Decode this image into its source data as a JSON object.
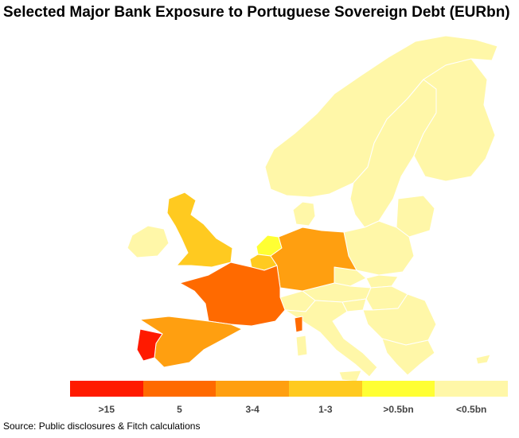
{
  "title": "Selected Major Bank Exposure to Portuguese Sovereign Debt (EURbn)",
  "source": "Source: Public disclosures & Fitch calculations",
  "legend": {
    "items": [
      {
        "label": ">15",
        "color": "#ff1a00"
      },
      {
        "label": "5",
        "color": "#ff6a00"
      },
      {
        "label": "3-4",
        "color": "#ff9f10"
      },
      {
        "label": "1-3",
        "color": "#ffca20"
      },
      {
        "label": ">0.5bn",
        "color": "#ffff33"
      },
      {
        "label": "<0.5bn",
        "color": "#fff7a8"
      }
    ]
  },
  "map_data": {
    "regions": [
      {
        "country": "Portugal",
        "category": ">15"
      },
      {
        "country": "France",
        "category": "5"
      },
      {
        "country": "Spain",
        "category": "3-4"
      },
      {
        "country": "Germany",
        "category": "3-4"
      },
      {
        "country": "United Kingdom",
        "category": "1-3"
      },
      {
        "country": "Belgium",
        "category": "1-3"
      },
      {
        "country": "Netherlands",
        "category": ">0.5bn"
      },
      {
        "country": "Ireland",
        "category": "<0.5bn"
      },
      {
        "country": "Italy",
        "category": "<0.5bn"
      },
      {
        "country": "Norway",
        "category": "<0.5bn"
      },
      {
        "country": "Sweden",
        "category": "<0.5bn"
      },
      {
        "country": "Finland",
        "category": "<0.5bn"
      },
      {
        "country": "Denmark",
        "category": "<0.5bn"
      },
      {
        "country": "Poland",
        "category": "<0.5bn"
      },
      {
        "country": "Czech Republic",
        "category": "<0.5bn"
      },
      {
        "country": "Slovakia",
        "category": "<0.5bn"
      },
      {
        "country": "Austria",
        "category": "<0.5bn"
      },
      {
        "country": "Switzerland",
        "category": "<0.5bn"
      },
      {
        "country": "Hungary",
        "category": "<0.5bn"
      },
      {
        "country": "Slovenia",
        "category": "<0.5bn"
      },
      {
        "country": "Greece",
        "category": "<0.5bn"
      },
      {
        "country": "Baltics",
        "category": "<0.5bn"
      },
      {
        "country": "Balkans",
        "category": "<0.5bn"
      },
      {
        "country": "Cyprus",
        "category": "<0.5bn"
      }
    ]
  }
}
